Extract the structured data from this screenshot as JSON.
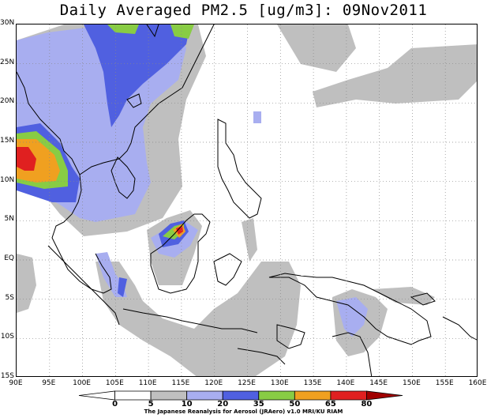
{
  "title": "Daily Averaged PM2.5 [ug/m3]: 09Nov2011",
  "map": {
    "lon_range": [
      90,
      160
    ],
    "lat_range": [
      -15,
      30
    ],
    "lon_ticks": [
      "90E",
      "95E",
      "100E",
      "105E",
      "110E",
      "115E",
      "120E",
      "125E",
      "130E",
      "135E",
      "140E",
      "145E",
      "150E",
      "155E",
      "160E"
    ],
    "lat_ticks": [
      "30N",
      "25N",
      "20N",
      "15N",
      "10N",
      "5N",
      "EQ",
      "5S",
      "10S",
      "15S"
    ],
    "grid": "dotted"
  },
  "colorbar": {
    "levels": [
      "0",
      "5",
      "10",
      "20",
      "35",
      "50",
      "65",
      "80"
    ],
    "colors": [
      "#ffffff",
      "#ffffff",
      "#bfbfbf",
      "#a8aef0",
      "#5060e0",
      "#88cc44",
      "#f0a020",
      "#e02020",
      "#a00000"
    ]
  },
  "credit": "The Japanese Reanalysis for Aerosol (JRAero) v1.0 MRI/KU RIAM"
}
